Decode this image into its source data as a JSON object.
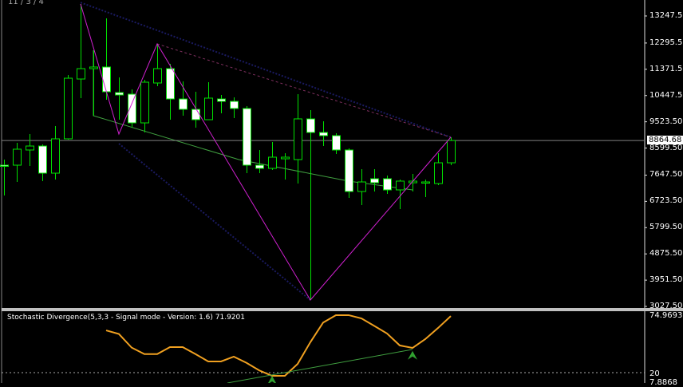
{
  "info_label": "11 / 3 / 4",
  "colors": {
    "background": "#000000",
    "candle_outline": "#00e000",
    "bull_fill": "#000000",
    "bear_fill": "#ffffff",
    "zigzag": "#d020d0",
    "trend": "#40a040",
    "channel": "#1a1a60",
    "dashed": "#803060",
    "stochastic": "#f0a020",
    "price_line": "#808080"
  },
  "main_axis": {
    "labels": [
      "13247.50",
      "12295.50",
      "11371.50",
      "10447.50",
      "9523.50",
      "8599.50",
      "7647.50",
      "6723.50",
      "5799.50",
      "4875.50",
      "3951.50",
      "3027.50"
    ],
    "current_price": "8864.68"
  },
  "indicator": {
    "title": "Stochastic Divergence(5,3,3 - Signal mode - Version: 1.6) 71.9201",
    "labels": [
      "74.9693",
      "20",
      "7.8868"
    ],
    "level": 20
  },
  "chart_data": {
    "type": "candlestick",
    "ylim": [
      3027.5,
      13247.5
    ],
    "candles": [
      [
        7997,
        8194,
        6930,
        7969
      ],
      [
        7997,
        8783,
        7407,
        8559
      ],
      [
        8531,
        9092,
        7969,
        8671
      ],
      [
        8671,
        8727,
        7436,
        7716
      ],
      [
        7716,
        9373,
        7492,
        8924
      ],
      [
        8924,
        11170,
        8896,
        11057
      ],
      [
        11029,
        13669,
        10356,
        11394
      ],
      [
        11394,
        12040,
        9738,
        11451
      ],
      [
        11451,
        13163,
        10299,
        10580
      ],
      [
        10552,
        11086,
        9597,
        10468
      ],
      [
        10496,
        10664,
        9317,
        9485
      ],
      [
        9485,
        11001,
        9148,
        10917
      ],
      [
        10889,
        12265,
        10777,
        11394
      ],
      [
        11394,
        11563,
        9597,
        10327
      ],
      [
        10327,
        10945,
        9738,
        9962
      ],
      [
        9962,
        10580,
        9317,
        9597
      ],
      [
        9597,
        10917,
        9597,
        10356
      ],
      [
        10327,
        10468,
        9822,
        10243
      ],
      [
        10243,
        10384,
        9654,
        9991
      ],
      [
        9991,
        10075,
        7716,
        7997
      ],
      [
        7997,
        8531,
        7716,
        7885
      ],
      [
        7885,
        8811,
        7829,
        8278
      ],
      [
        8222,
        8418,
        7492,
        8278
      ],
      [
        8194,
        10496,
        7351,
        9626
      ],
      [
        9626,
        9934,
        3252,
        9148
      ],
      [
        9148,
        9541,
        8671,
        9036
      ],
      [
        9036,
        9120,
        8390,
        8531
      ],
      [
        8531,
        8587,
        6846,
        7071
      ],
      [
        7071,
        7857,
        6593,
        7407
      ],
      [
        7520,
        7857,
        7071,
        7379
      ],
      [
        7520,
        7632,
        6986,
        7127
      ],
      [
        7127,
        7492,
        6453,
        7436
      ],
      [
        7379,
        7688,
        7071,
        7436
      ],
      [
        7379,
        7492,
        6874,
        7407
      ],
      [
        7351,
        8418,
        7295,
        8081
      ],
      [
        8081,
        8980,
        7997,
        8864.68
      ]
    ],
    "candle_fields": [
      "open",
      "high",
      "low",
      "close"
    ],
    "overlays": {
      "zigzag": [
        [
          6,
          13669
        ],
        [
          9,
          9092
        ],
        [
          12,
          12265
        ],
        [
          24,
          3252
        ],
        [
          35,
          8980
        ]
      ],
      "trend": [
        [
          7,
          12040
        ],
        [
          7,
          9738
        ],
        [
          18.4,
          8194
        ],
        [
          27,
          7436
        ],
        [
          32,
          7127
        ]
      ],
      "channel_upper": [
        [
          6,
          13720
        ],
        [
          35,
          8980
        ]
      ],
      "channel_lower": [
        [
          9,
          8755
        ],
        [
          24,
          3252
        ]
      ],
      "dashed": [
        [
          12,
          12265
        ],
        [
          35,
          8980
        ]
      ]
    },
    "stochastic": {
      "start_bar": 8,
      "values": [
        58.8,
        55.5,
        43,
        37,
        37,
        43.5,
        43.5,
        37,
        30.3,
        30.3,
        34.7,
        29,
        22,
        17.1,
        17.1,
        28,
        48,
        66,
        72.8,
        72.8,
        69.8,
        63,
        56,
        45,
        42.7,
        50.8,
        61,
        71.92
      ],
      "ylim": [
        7.8868,
        74.9693
      ],
      "divergence_line": [
        [
          17.5,
          10.5
        ],
        [
          32,
          41.3
        ]
      ],
      "signals": [
        [
          21,
          17.1
        ],
        [
          32,
          40
        ]
      ]
    }
  }
}
